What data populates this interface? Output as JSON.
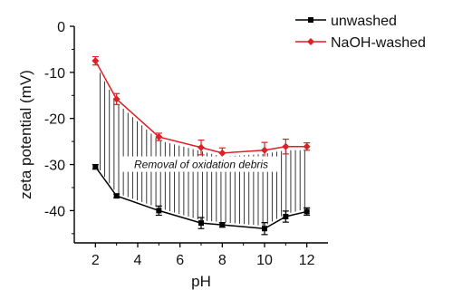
{
  "chart_data": {
    "type": "line",
    "xlabel": "pH",
    "ylabel": "zeta potential (mV)",
    "xlim": [
      1,
      13
    ],
    "ylim": [
      -47,
      0
    ],
    "x_ticks": [
      2,
      4,
      6,
      8,
      10,
      12
    ],
    "y_ticks": [
      0,
      -10,
      -20,
      -30,
      -40
    ],
    "x_tick_labels": [
      "2",
      "4",
      "6",
      "8",
      "10",
      "12"
    ],
    "y_tick_labels": [
      "0",
      "-10",
      "-20",
      "-30",
      "-40"
    ],
    "grid": false,
    "legend_position": "top-right",
    "series": [
      {
        "name": "unwashed",
        "color": "#000000",
        "marker": "square",
        "x": [
          2,
          3,
          5,
          7,
          8,
          10,
          11,
          12
        ],
        "y": [
          -30.5,
          -36.8,
          -40.0,
          -42.7,
          -43.1,
          -43.9,
          -41.3,
          -40.2
        ],
        "err": [
          0.5,
          0.4,
          1.0,
          1.2,
          0.5,
          1.3,
          1.2,
          0.8
        ]
      },
      {
        "name": "NaOH-washed",
        "color": "#dd1f26",
        "marker": "diamond",
        "x": [
          2,
          3,
          5,
          7,
          8,
          10,
          11,
          12
        ],
        "y": [
          -7.5,
          -15.8,
          -24.0,
          -26.3,
          -27.5,
          -26.9,
          -26.1,
          -26.1
        ],
        "err": [
          0.9,
          1.2,
          0.8,
          1.6,
          1.1,
          1.7,
          1.6,
          0.8
        ]
      }
    ],
    "annotation": "Removal of oxidation debris"
  }
}
